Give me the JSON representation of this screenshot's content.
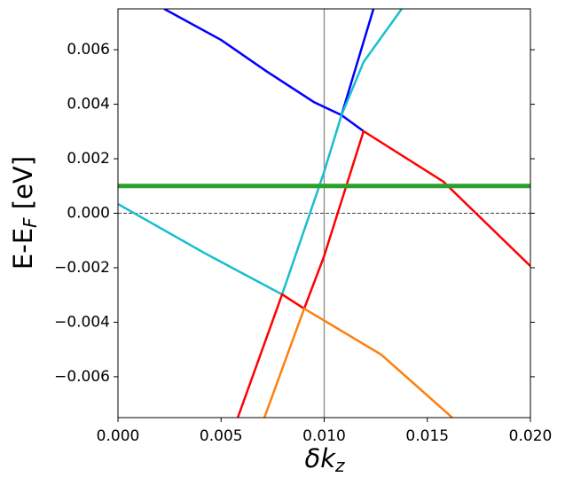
{
  "chart_data": {
    "type": "line",
    "xlabel": [
      "δk",
      "z"
    ],
    "ylabel": [
      "E-E",
      "F",
      " [eV]"
    ],
    "xlim": [
      0,
      0.02
    ],
    "ylim": [
      -0.0075,
      0.0075
    ],
    "xticks": [
      {
        "value": 0,
        "label": "0.000"
      },
      0.005,
      {
        "value": 0.01,
        "label": "0.010"
      },
      0.015,
      {
        "value": 0.02,
        "label": "0.020"
      }
    ],
    "yticks": [
      {
        "value": -0.006,
        "label": "−0.006"
      },
      {
        "value": -0.004,
        "label": "−0.004"
      },
      {
        "value": -0.002,
        "label": "−0.002"
      },
      {
        "value": 0,
        "label": "0.000"
      },
      0.002,
      0.004,
      0.006
    ],
    "reference_lines": {
      "y": 0,
      "x": 0.01
    },
    "series": [
      {
        "color": "#0000ff",
        "x": [
          0.00224,
          0.005,
          0.00718,
          0.0095,
          0.01084,
          0.01191,
          null,
          0.01084,
          0.01239
        ],
        "values": [
          0.0075,
          0.00636,
          0.00522,
          0.00408,
          0.0036,
          0.00301,
          null,
          0.0036,
          0.0075
        ]
      },
      {
        "color": "#17becf",
        "x": [
          0,
          0.00417,
          0.00796,
          0.00998,
          0.01084,
          0.01191,
          0.01376
        ],
        "values": [
          0.00034,
          -0.00145,
          -0.00298,
          0.00148,
          0.0036,
          0.00555,
          0.0075
        ]
      },
      {
        "color": "#ff0000",
        "x": [
          0.00581,
          0.00796,
          0.00903,
          0.00998,
          0.01191,
          0.01578,
          0.02
        ],
        "values": [
          -0.0075,
          -0.00298,
          -0.0035,
          -0.00161,
          0.00301,
          0.00116,
          -0.00194
        ]
      },
      {
        "color": "#ff7f0e",
        "x": [
          0.0071,
          0.00903,
          0.01277,
          0.01621
        ],
        "values": [
          -0.0075,
          -0.0035,
          -0.00519,
          -0.0075
        ]
      },
      {
        "color": "#2ca02c",
        "x": [
          0,
          0.02
        ],
        "values": [
          0.001,
          0.001
        ]
      }
    ]
  }
}
